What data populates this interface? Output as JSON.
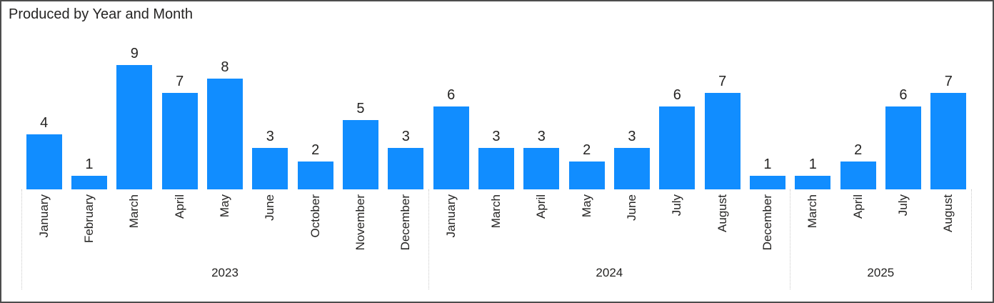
{
  "title": "Produced by Year and Month",
  "colors": {
    "bar": "#118DFF",
    "text": "#252423",
    "separator": "#C9C9C9",
    "border": "#4D4D4D",
    "background": "#FFFFFF"
  },
  "chart_data": {
    "type": "bar",
    "title": "Produced by Year and Month",
    "xlabel": "Year and Month",
    "ylabel": "",
    "ylim": [
      0,
      9
    ],
    "grid": false,
    "legend": false,
    "value_labels": true,
    "groups": [
      {
        "year": "2023",
        "months": [
          "January",
          "February",
          "March",
          "April",
          "May",
          "June",
          "October",
          "November",
          "December"
        ],
        "values": [
          4,
          1,
          9,
          7,
          8,
          3,
          2,
          5,
          3
        ]
      },
      {
        "year": "2024",
        "months": [
          "January",
          "March",
          "April",
          "May",
          "June",
          "July",
          "August",
          "December"
        ],
        "values": [
          6,
          3,
          3,
          2,
          3,
          6,
          7,
          1
        ]
      },
      {
        "year": "2025",
        "months": [
          "March",
          "April",
          "July",
          "August"
        ],
        "values": [
          1,
          2,
          6,
          7
        ]
      }
    ]
  }
}
